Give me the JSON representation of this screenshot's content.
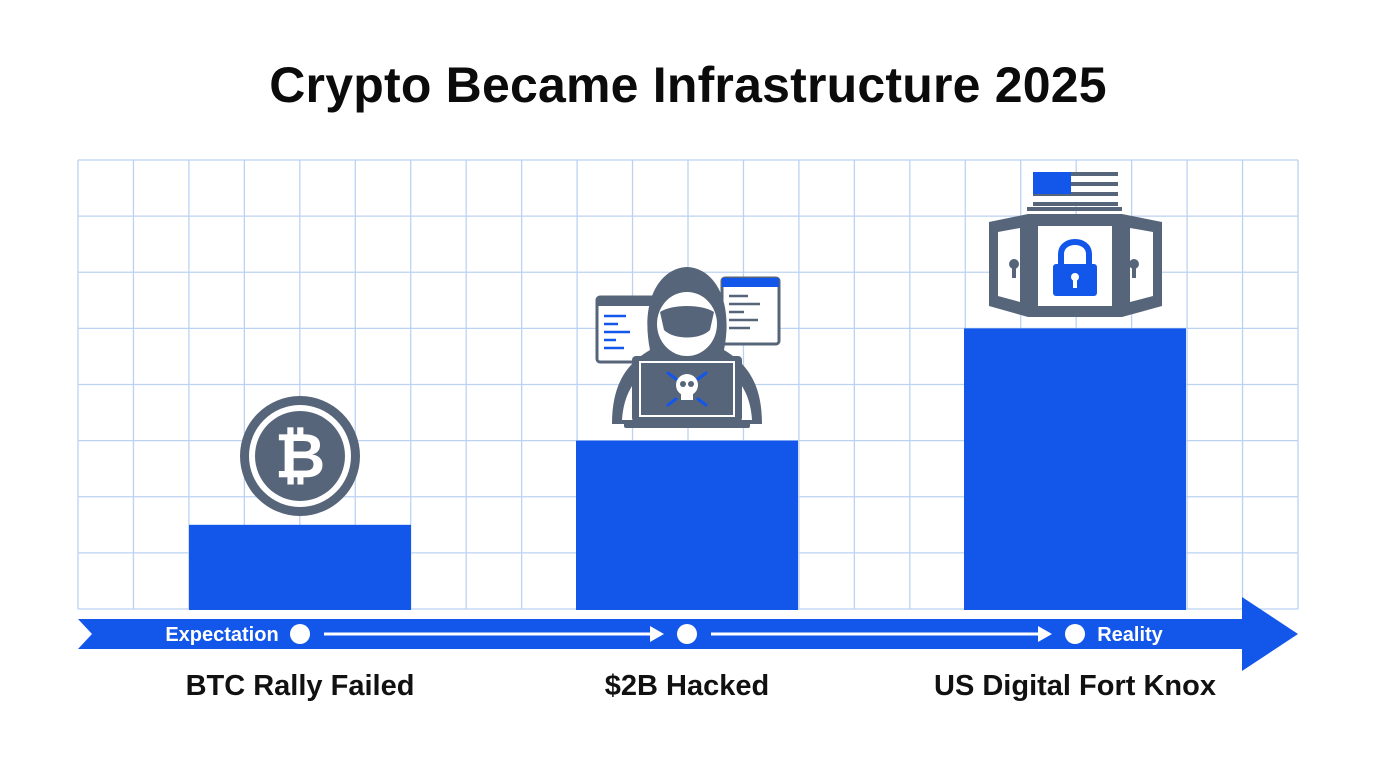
{
  "title": "Crypto Became Infrastructure 2025",
  "colors": {
    "bar": "#1356ea",
    "grid": "#bcd2f3",
    "arrow": "#1356ea",
    "icon": "#57657a",
    "icon_accent": "#1356ea"
  },
  "chart_data": {
    "type": "bar",
    "title": "Crypto Became Infrastructure 2025",
    "categories": [
      "BTC Rally Failed",
      "$2B Hacked",
      "US Digital Fort Knox"
    ],
    "values": [
      1.5,
      3.0,
      5.0
    ],
    "ylim": [
      0,
      8
    ],
    "grid": true,
    "axis_note": "no numeric tick labels are printed; values are relative heights read against the gridlines",
    "icons": [
      "bitcoin-icon",
      "hacker-icon",
      "vault-icon"
    ]
  },
  "timeline": {
    "start_label": "Expectation",
    "end_label": "Reality"
  }
}
